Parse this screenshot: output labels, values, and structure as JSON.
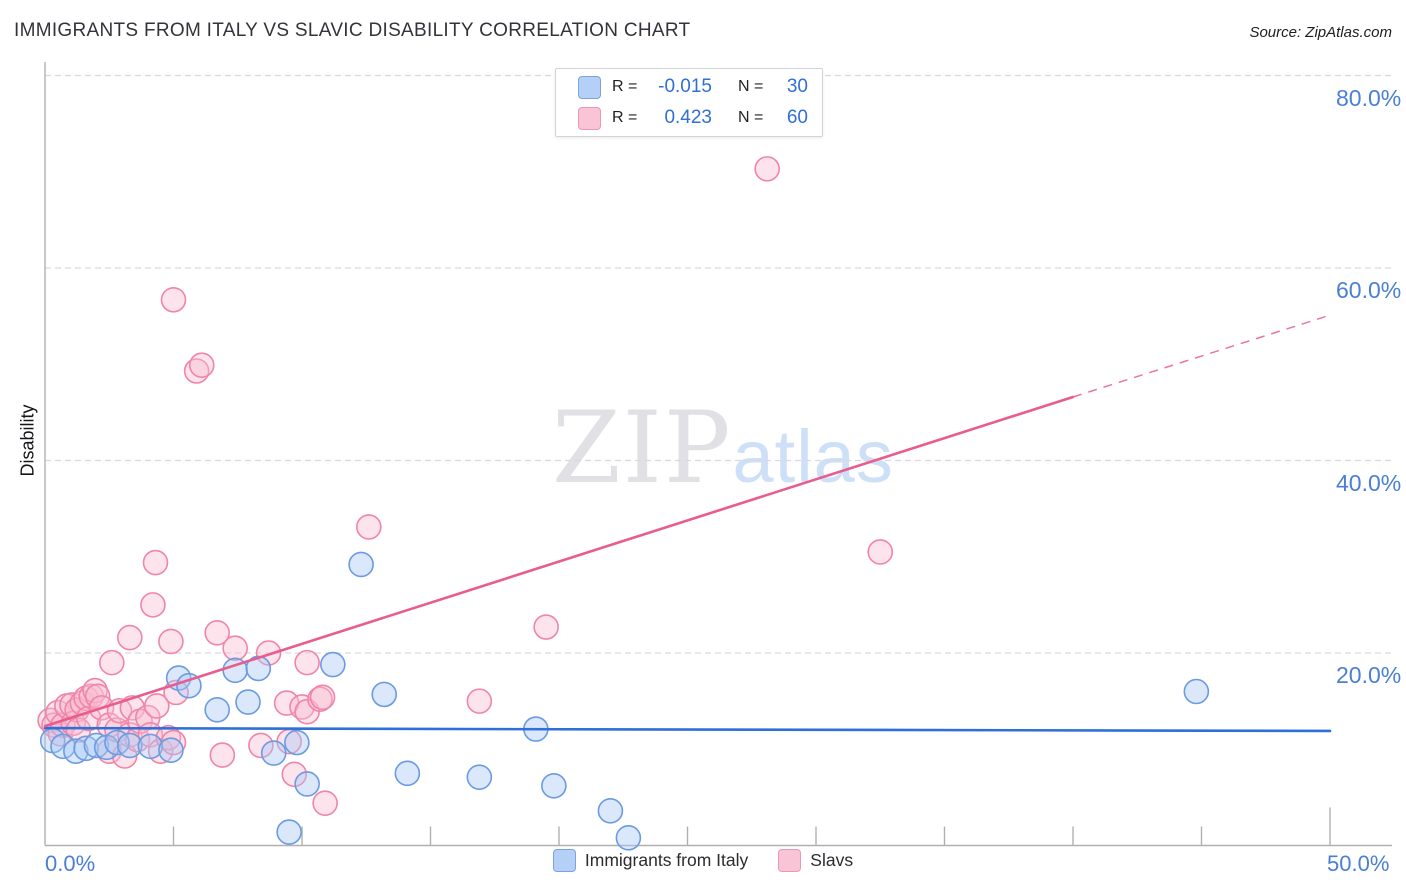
{
  "header": {
    "title": "IMMIGRANTS FROM ITALY VS SLAVIC DISABILITY CORRELATION CHART",
    "source": "Source: ZipAtlas.com"
  },
  "watermark": {
    "zip": "ZIP",
    "atlas": "atlas"
  },
  "stats_legend": {
    "rows": [
      {
        "series": "italy",
        "r_label": "R =",
        "r_value": "-0.015",
        "n_label": "N =",
        "n_value": "30"
      },
      {
        "series": "slavs",
        "r_label": "R =",
        "r_value": "0.423",
        "n_label": "N =",
        "n_value": "60"
      }
    ]
  },
  "axis": {
    "x_left_label": "0.0%",
    "x_right_label": "50.0%"
  },
  "bottom_legend": {
    "items": [
      {
        "label": "Immigrants from Italy",
        "swatch": "blue"
      },
      {
        "label": "Slavs",
        "swatch": "pink"
      }
    ]
  },
  "chart_data": {
    "type": "scatter",
    "title": "IMMIGRANTS FROM ITALY VS SLAVIC DISABILITY CORRELATION CHART",
    "xlabel": "Immigrants from Italy (%)",
    "ylabel": "Disability",
    "xlim": [
      0,
      50
    ],
    "ylim": [
      0,
      83
    ],
    "grid": "horizontal-dashed",
    "legend_position": "top-center",
    "x_ticks": [
      5,
      10,
      15,
      20,
      25,
      30,
      35,
      40,
      45,
      50
    ],
    "y_gridlines": [
      20,
      40,
      60,
      80
    ],
    "y_tick_labels": [
      "20.0%",
      "40.0%",
      "60.0%",
      "80.0%"
    ],
    "colors": {
      "italy_fill": "#aac8f5",
      "italy_stroke": "#6b9be0",
      "italy_line": "#2e6fd8",
      "slavs_fill": "#f7bcd1",
      "slavs_stroke": "#f085a8",
      "slavs_line": "#e85d8d",
      "grid": "#d9d9d9",
      "axis": "#b0b0b0",
      "tick_label": "#4a7fd4"
    },
    "series": [
      {
        "name": "Slavs",
        "r": 0.423,
        "n": 60,
        "points": [
          [
            0.2,
            13.0
          ],
          [
            0.35,
            12.5
          ],
          [
            0.5,
            13.8
          ],
          [
            0.6,
            11.6
          ],
          [
            0.7,
            12.5
          ],
          [
            0.85,
            14.5
          ],
          [
            1.05,
            14.6
          ],
          [
            1.1,
            12.7
          ],
          [
            1.25,
            14.1
          ],
          [
            1.3,
            12.0
          ],
          [
            1.45,
            14.8
          ],
          [
            1.6,
            15.3
          ],
          [
            1.7,
            13.2
          ],
          [
            1.8,
            15.5
          ],
          [
            1.95,
            16.1
          ],
          [
            2.05,
            15.5
          ],
          [
            2.2,
            14.3
          ],
          [
            2.5,
            12.5
          ],
          [
            2.5,
            9.8
          ],
          [
            2.6,
            19.0
          ],
          [
            2.8,
            12.0
          ],
          [
            2.9,
            14.0
          ],
          [
            3.1,
            9.3
          ],
          [
            3.3,
            11.5
          ],
          [
            3.3,
            21.6
          ],
          [
            3.4,
            14.3
          ],
          [
            3.6,
            11.0
          ],
          [
            3.7,
            12.9
          ],
          [
            4.0,
            13.3
          ],
          [
            4.1,
            11.5
          ],
          [
            4.2,
            25.0
          ],
          [
            4.3,
            29.4
          ],
          [
            4.35,
            14.5
          ],
          [
            4.5,
            9.8
          ],
          [
            4.8,
            11.2
          ],
          [
            4.9,
            21.2
          ],
          [
            5.0,
            10.7
          ],
          [
            5.0,
            56.7
          ],
          [
            5.1,
            15.9
          ],
          [
            5.9,
            49.3
          ],
          [
            6.1,
            49.9
          ],
          [
            6.7,
            22.1
          ],
          [
            6.9,
            9.4
          ],
          [
            7.4,
            20.5
          ],
          [
            8.4,
            10.4
          ],
          [
            8.7,
            20.0
          ],
          [
            9.4,
            14.8
          ],
          [
            9.5,
            10.8
          ],
          [
            9.7,
            7.4
          ],
          [
            10.0,
            14.4
          ],
          [
            10.2,
            13.9
          ],
          [
            10.2,
            19.0
          ],
          [
            10.7,
            15.2
          ],
          [
            10.8,
            15.4
          ],
          [
            10.9,
            4.4
          ],
          [
            12.6,
            33.1
          ],
          [
            16.9,
            15.0
          ],
          [
            19.5,
            22.7
          ],
          [
            28.1,
            70.3
          ],
          [
            32.5,
            30.5
          ]
        ]
      },
      {
        "name": "Immigrants from Italy",
        "r": -0.015,
        "n": 30,
        "points": [
          [
            0.3,
            10.9
          ],
          [
            0.7,
            10.3
          ],
          [
            1.2,
            9.8
          ],
          [
            1.6,
            10.1
          ],
          [
            2.0,
            10.4
          ],
          [
            2.4,
            10.2
          ],
          [
            2.8,
            10.7
          ],
          [
            3.3,
            10.4
          ],
          [
            4.1,
            10.3
          ],
          [
            4.9,
            9.9
          ],
          [
            5.2,
            17.4
          ],
          [
            5.6,
            16.6
          ],
          [
            6.7,
            14.1
          ],
          [
            7.4,
            18.2
          ],
          [
            7.9,
            14.9
          ],
          [
            8.3,
            18.4
          ],
          [
            8.9,
            9.6
          ],
          [
            9.8,
            10.7
          ],
          [
            9.5,
            1.4
          ],
          [
            10.2,
            6.4
          ],
          [
            11.2,
            18.8
          ],
          [
            12.3,
            29.2
          ],
          [
            13.2,
            15.7
          ],
          [
            14.1,
            7.5
          ],
          [
            16.9,
            7.1
          ],
          [
            19.1,
            12.1
          ],
          [
            19.8,
            6.2
          ],
          [
            22.0,
            3.6
          ],
          [
            22.7,
            0.8
          ],
          [
            44.8,
            16.0
          ]
        ]
      }
    ],
    "trend_lines": [
      {
        "series": "Immigrants from Italy",
        "solid": [
          [
            0,
            12.2
          ],
          [
            50,
            11.9
          ]
        ]
      },
      {
        "series": "Slavs",
        "solid": [
          [
            0,
            12.4
          ],
          [
            40,
            46.6
          ]
        ],
        "dashed": [
          [
            40,
            46.6
          ],
          [
            50,
            55.1
          ]
        ]
      }
    ]
  }
}
